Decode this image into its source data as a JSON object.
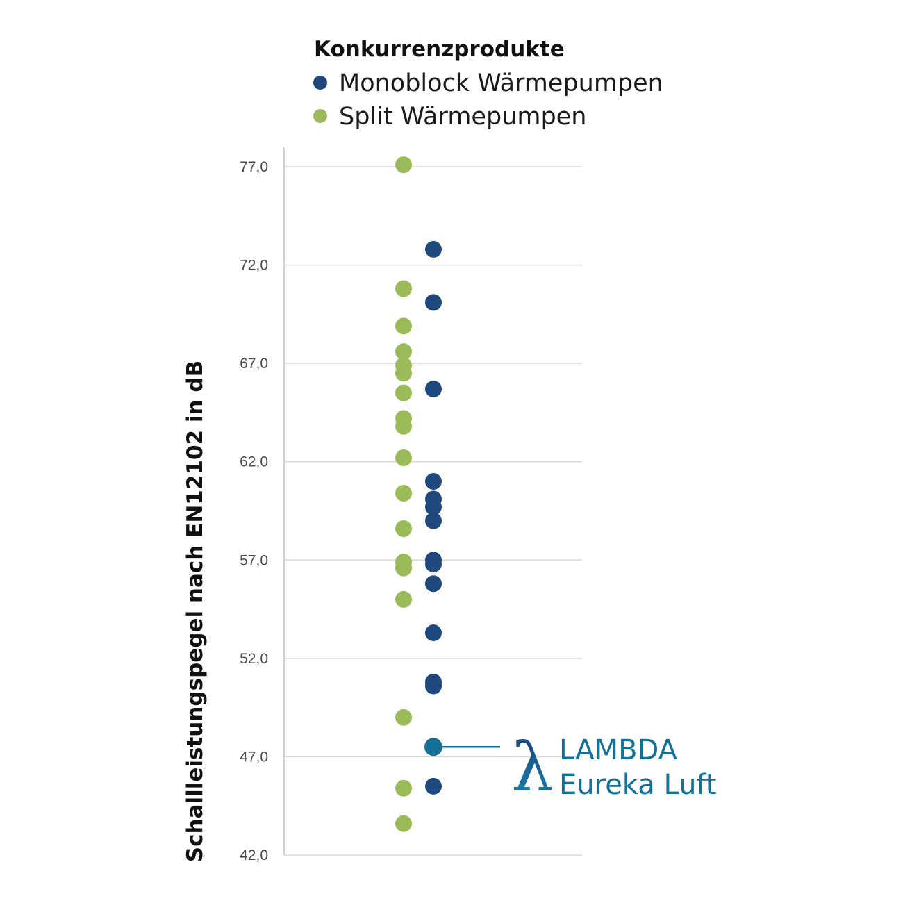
{
  "chart_data": {
    "type": "scatter",
    "ylabel": "Schallleistungspegel nach EN12102 in dB",
    "ylim": [
      42,
      77
    ],
    "yticks": [
      "77,0",
      "72,0",
      "67,0",
      "62,0",
      "57,0",
      "52,0",
      "47,0",
      "42,0"
    ],
    "ytick_values": [
      77,
      72,
      67,
      62,
      57,
      52,
      47,
      42
    ],
    "grid": true,
    "legend": {
      "title": "Konkurrenzprodukte",
      "position": "top"
    },
    "series": [
      {
        "name": "Split Wärmepumpen",
        "color": "#9bbb59",
        "column": 1,
        "values": [
          77.1,
          70.8,
          68.9,
          67.6,
          66.9,
          66.5,
          65.5,
          64.2,
          63.8,
          62.2,
          60.4,
          58.6,
          56.9,
          56.6,
          55.0,
          49.0,
          45.4,
          43.6
        ]
      },
      {
        "name": "Monoblock Wärmepumpen",
        "color": "#1f487c",
        "column": 2,
        "values": [
          72.8,
          70.1,
          65.7,
          61.0,
          60.1,
          59.7,
          59.0,
          57.0,
          56.8,
          55.8,
          53.3,
          50.8,
          50.6,
          45.5
        ]
      }
    ],
    "highlight": {
      "value": 47.5,
      "column": 2,
      "color": "#147097",
      "symbol": "λ",
      "label_line1": "LAMBDA",
      "label_line2": "Eureka Luft"
    }
  }
}
